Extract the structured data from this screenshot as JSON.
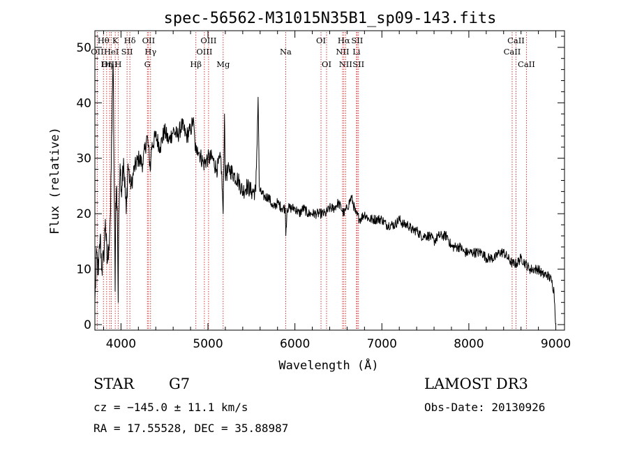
{
  "chart_data": {
    "type": "line",
    "title": "spec-56562-M31015N35B1_sp09-143.fits",
    "xlabel": "Wavelength (Å)",
    "ylabel": "Flux (relative)",
    "xlim": [
      3700,
      9100
    ],
    "ylim": [
      -1,
      53
    ],
    "xticks": [
      4000,
      5000,
      6000,
      7000,
      8000,
      9000
    ],
    "yticks": [
      0,
      10,
      20,
      30,
      40,
      50
    ],
    "series": [
      {
        "name": "flux",
        "color": "#000000",
        "x": [
          3700,
          3720,
          3740,
          3760,
          3780,
          3800,
          3820,
          3840,
          3860,
          3880,
          3900,
          3910,
          3920,
          3933,
          3940,
          3950,
          3960,
          3968,
          3975,
          3990,
          4000,
          4030,
          4060,
          4080,
          4101,
          4120,
          4150,
          4200,
          4250,
          4300,
          4340,
          4350,
          4400,
          4450,
          4500,
          4550,
          4600,
          4650,
          4700,
          4750,
          4800,
          4830,
          4850,
          4861,
          4880,
          4900,
          4950,
          5000,
          5050,
          5100,
          5150,
          5175,
          5190,
          5200,
          5250,
          5300,
          5350,
          5400,
          5450,
          5500,
          5550,
          5577,
          5590,
          5600,
          5650,
          5700,
          5750,
          5800,
          5850,
          5890,
          5895,
          5910,
          5950,
          6000,
          6050,
          6100,
          6150,
          6200,
          6250,
          6300,
          6350,
          6400,
          6450,
          6500,
          6563,
          6600,
          6650,
          6700,
          6750,
          6800,
          6850,
          6900,
          6950,
          7000,
          7050,
          7100,
          7150,
          7200,
          7250,
          7300,
          7350,
          7400,
          7450,
          7500,
          7550,
          7600,
          7650,
          7700,
          7750,
          7800,
          7850,
          7900,
          7950,
          8000,
          8050,
          8100,
          8150,
          8200,
          8250,
          8300,
          8350,
          8400,
          8450,
          8500,
          8550,
          8600,
          8650,
          8700,
          8750,
          8800,
          8850,
          8900,
          8950,
          8980,
          9000
        ],
        "values": [
          4,
          13,
          9,
          16,
          10,
          12,
          19,
          11,
          14,
          20,
          41,
          47,
          28,
          6,
          22,
          25,
          18,
          4,
          20,
          29,
          24,
          30,
          20,
          29,
          26,
          25,
          28,
          30,
          29,
          34,
          28,
          32,
          34,
          32,
          35,
          33,
          35,
          34,
          36,
          34,
          35,
          37,
          33,
          31,
          32,
          31,
          29,
          30,
          30,
          28,
          30,
          20,
          38,
          27,
          28,
          27,
          26,
          24,
          25,
          24,
          24,
          41,
          25,
          24,
          23,
          23,
          21,
          22,
          21,
          21,
          16,
          21,
          21,
          21,
          20,
          21,
          20,
          20,
          20,
          20,
          20,
          21,
          21,
          22,
          20,
          21,
          23,
          20,
          19,
          20,
          19,
          19,
          19,
          19,
          18,
          18,
          18,
          19,
          18,
          18,
          17,
          17,
          16,
          16,
          16,
          15,
          16,
          16,
          16,
          14,
          14,
          14,
          13,
          13,
          13,
          13,
          13,
          12,
          12,
          12,
          13,
          13,
          12,
          11,
          11,
          12,
          11,
          10,
          10,
          10,
          9,
          9,
          8,
          6,
          0
        ]
      }
    ],
    "annotations": [
      {
        "label": "Hθ",
        "x": 3798,
        "row": 1
      },
      {
        "label": "OII",
        "x": 3727,
        "row": 2
      },
      {
        "label": "Hη",
        "x": 3835,
        "row": 3
      },
      {
        "label": "OIII",
        "x": 3869,
        "row": 3
      },
      {
        "label": "HeI",
        "x": 3889,
        "row": 2
      },
      {
        "label": "K",
        "x": 3934,
        "row": 1
      },
      {
        "label": "H",
        "x": 3968,
        "row": 3
      },
      {
        "label": "SII",
        "x": 4070,
        "row": 2
      },
      {
        "label": "Hδ",
        "x": 4102,
        "row": 1
      },
      {
        "label": "OII",
        "x": 4317,
        "row": 1
      },
      {
        "label": "Hγ",
        "x": 4340,
        "row": 2
      },
      {
        "label": "G",
        "x": 4304,
        "row": 3
      },
      {
        "label": "Hβ",
        "x": 4861,
        "row": 3
      },
      {
        "label": "OIII",
        "x": 4959,
        "row": 2
      },
      {
        "label": "OIII",
        "x": 5007,
        "row": 1
      },
      {
        "label": "Mg",
        "x": 5175,
        "row": 3
      },
      {
        "label": "Na",
        "x": 5894,
        "row": 2
      },
      {
        "label": "OI",
        "x": 6300,
        "row": 1
      },
      {
        "label": "OI",
        "x": 6364,
        "row": 3
      },
      {
        "label": "NII",
        "x": 6548,
        "row": 2
      },
      {
        "label": "Hα",
        "x": 6563,
        "row": 1
      },
      {
        "label": "NII",
        "x": 6583,
        "row": 3
      },
      {
        "label": "Li",
        "x": 6708,
        "row": 2
      },
      {
        "label": "SII",
        "x": 6716,
        "row": 1
      },
      {
        "label": "SII",
        "x": 6731,
        "row": 3
      },
      {
        "label": "CaII",
        "x": 8498,
        "row": 2
      },
      {
        "label": "CaII",
        "x": 8542,
        "row": 1
      },
      {
        "label": "CaII",
        "x": 8662,
        "row": 3
      }
    ]
  },
  "info": {
    "object_class": "STAR",
    "subclass": "G7",
    "survey": "LAMOST DR3",
    "redshift": "cz = −145.0 ± 11.1 km/s",
    "obs_date": "Obs-Date: 20130926",
    "coords": "RA =  17.55528, DEC =  35.88987"
  },
  "colors": {
    "axis": "#000000",
    "marker": "#cc2020",
    "background": "#ffffff"
  }
}
